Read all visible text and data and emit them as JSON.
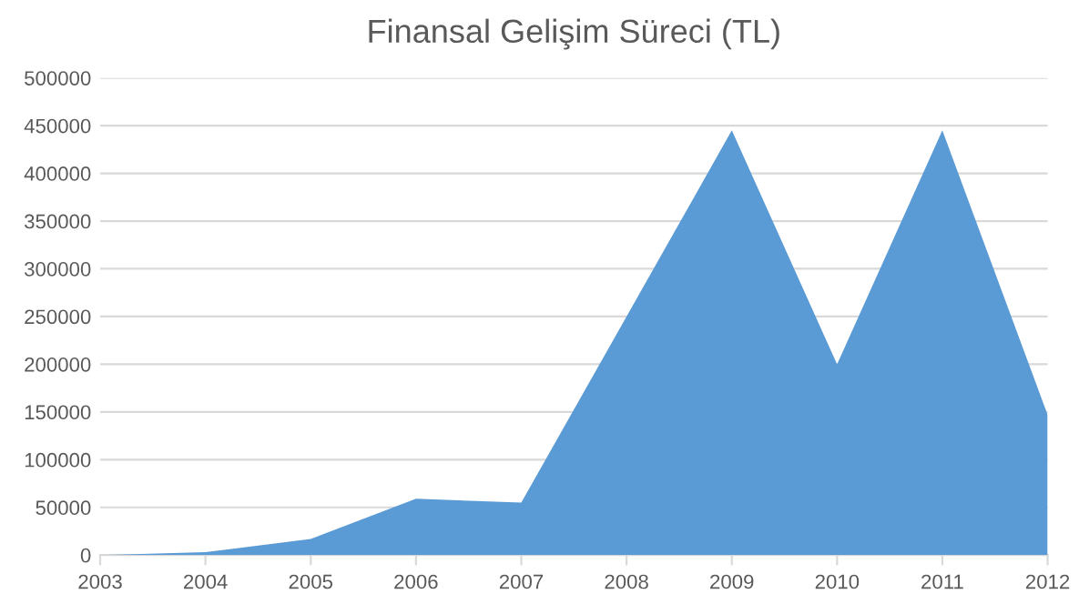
{
  "chart_data": {
    "type": "area",
    "title": "Finansal Gelişim Süreci (TL)",
    "categories": [
      "2003",
      "2004",
      "2005",
      "2006",
      "2007",
      "2008",
      "2009",
      "2010",
      "2011",
      "2012"
    ],
    "series": [
      {
        "color": "#5b9bd5",
        "values": [
          0,
          3000,
          17000,
          59000,
          55000,
          250000,
          445000,
          200000,
          445000,
          147000
        ]
      }
    ],
    "ylim": [
      0,
      500000
    ],
    "yticks": [
      0,
      50000,
      100000,
      150000,
      200000,
      250000,
      300000,
      350000,
      400000,
      450000,
      500000
    ],
    "grid": "y"
  }
}
